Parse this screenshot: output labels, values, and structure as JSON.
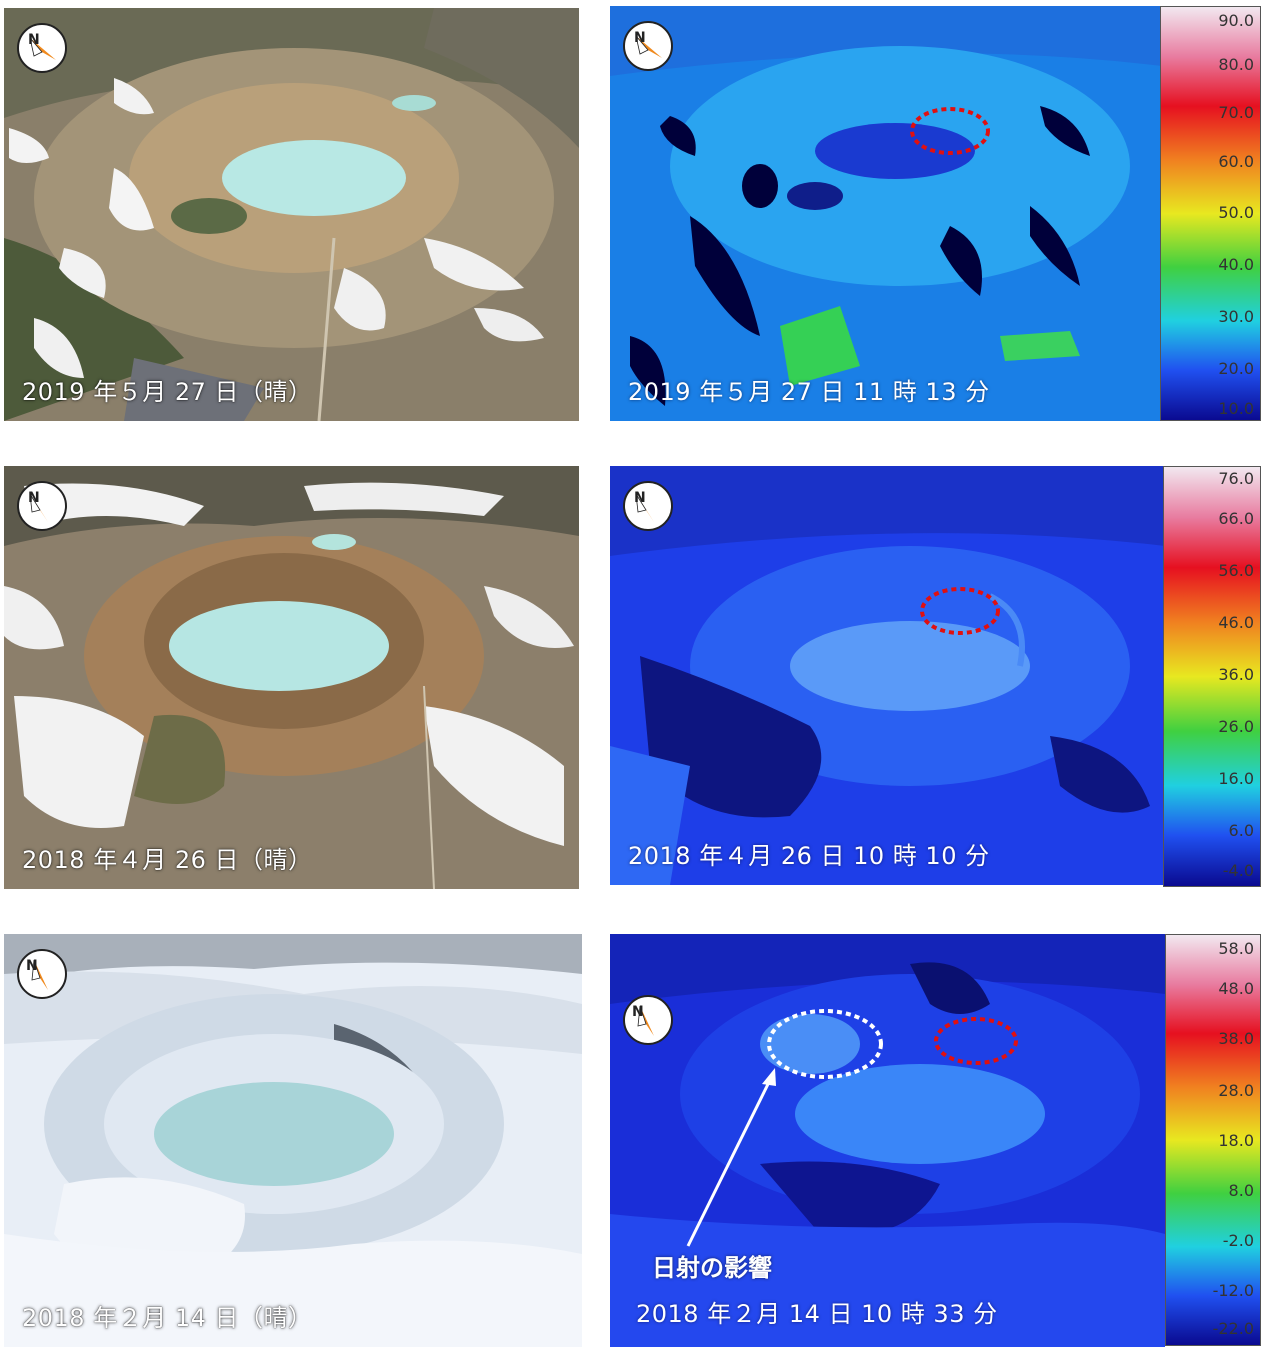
{
  "photos": [
    {
      "caption": "2019 年５月 27 日（晴）",
      "scene": "summer"
    },
    {
      "caption": "2018 年４月 26 日（晴）",
      "scene": "spring"
    },
    {
      "caption": "2018 年２月 14 日（晴）",
      "scene": "winter"
    }
  ],
  "thermals": [
    {
      "caption": "2019 年５月 27 日 11 時 13 分",
      "scale": [
        "90.0",
        "80.0",
        "70.0",
        "60.0",
        "50.0",
        "40.0",
        "30.0",
        "20.0",
        "10.0"
      ]
    },
    {
      "caption": "2018 年４月 26 日 10 時 10 分",
      "scale": [
        "76.0",
        "66.0",
        "56.0",
        "46.0",
        "36.0",
        "26.0",
        "16.0",
        "6.0",
        "-4.0"
      ]
    },
    {
      "caption": "2018 年２月 14 日 10 時 33 分",
      "scale": [
        "58.0",
        "48.0",
        "38.0",
        "28.0",
        "18.0",
        "8.0",
        "-2.0",
        "-12.0",
        "-22.0"
      ]
    }
  ],
  "annotation": {
    "label": "日射の影響"
  },
  "compass": {
    "label": "N",
    "icon": "north-arrow-icon"
  },
  "colors": {
    "highlight_red": "#e01010",
    "highlight_white": "#ffffff"
  }
}
